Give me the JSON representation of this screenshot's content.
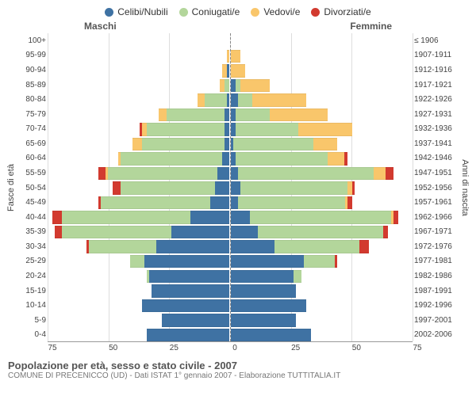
{
  "chart": {
    "type": "population-pyramid",
    "legend": [
      {
        "label": "Celibi/Nubili",
        "color": "#3f72a3"
      },
      {
        "label": "Coniugati/e",
        "color": "#b3d69b"
      },
      {
        "label": "Vedovi/e",
        "color": "#f9c66b"
      },
      {
        "label": "Divorziati/e",
        "color": "#d23a2f"
      }
    ],
    "side_left_title": "Maschi",
    "side_right_title": "Femmine",
    "y_axis_left_title": "Fasce di età",
    "y_axis_right_title": "Anni di nascita",
    "x_max": 75,
    "x_ticks": [
      75,
      50,
      25,
      0,
      25,
      50,
      75
    ],
    "background_color": "#ffffff",
    "grid_color": "#dddddd",
    "center_line_color": "#888888",
    "age_groups": [
      "100+",
      "95-99",
      "90-94",
      "85-89",
      "80-84",
      "75-79",
      "70-74",
      "65-69",
      "60-64",
      "55-59",
      "50-54",
      "45-49",
      "40-44",
      "35-39",
      "30-34",
      "25-29",
      "20-24",
      "15-19",
      "10-14",
      "5-9",
      "0-4"
    ],
    "birth_years": [
      "≤ 1906",
      "1907-1911",
      "1912-1916",
      "1917-1921",
      "1922-1926",
      "1927-1931",
      "1932-1936",
      "1937-1941",
      "1942-1946",
      "1947-1951",
      "1952-1956",
      "1957-1961",
      "1962-1966",
      "1967-1971",
      "1972-1976",
      "1977-1981",
      "1982-1986",
      "1987-1991",
      "1992-1996",
      "1997-2001",
      "2002-2006"
    ],
    "males": [
      {
        "single": 0,
        "married": 0,
        "widowed": 0,
        "divorced": 0
      },
      {
        "single": 0,
        "married": 0,
        "widowed": 1,
        "divorced": 0
      },
      {
        "single": 1,
        "married": 0,
        "widowed": 2,
        "divorced": 0
      },
      {
        "single": 0,
        "married": 2,
        "widowed": 2,
        "divorced": 0
      },
      {
        "single": 1,
        "married": 9,
        "widowed": 3,
        "divorced": 0
      },
      {
        "single": 2,
        "married": 24,
        "widowed": 3,
        "divorced": 0
      },
      {
        "single": 2,
        "married": 32,
        "widowed": 2,
        "divorced": 1
      },
      {
        "single": 2,
        "married": 34,
        "widowed": 4,
        "divorced": 0
      },
      {
        "single": 3,
        "married": 42,
        "widowed": 1,
        "divorced": 0
      },
      {
        "single": 5,
        "married": 45,
        "widowed": 1,
        "divorced": 3
      },
      {
        "single": 6,
        "married": 39,
        "widowed": 0,
        "divorced": 3
      },
      {
        "single": 8,
        "married": 45,
        "widowed": 0,
        "divorced": 1
      },
      {
        "single": 16,
        "married": 53,
        "widowed": 0,
        "divorced": 4
      },
      {
        "single": 24,
        "married": 45,
        "widowed": 0,
        "divorced": 3
      },
      {
        "single": 30,
        "married": 28,
        "widowed": 0,
        "divorced": 1
      },
      {
        "single": 35,
        "married": 6,
        "widowed": 0,
        "divorced": 0
      },
      {
        "single": 33,
        "married": 1,
        "widowed": 0,
        "divorced": 0
      },
      {
        "single": 32,
        "married": 0,
        "widowed": 0,
        "divorced": 0
      },
      {
        "single": 36,
        "married": 0,
        "widowed": 0,
        "divorced": 0
      },
      {
        "single": 28,
        "married": 0,
        "widowed": 0,
        "divorced": 0
      },
      {
        "single": 34,
        "married": 0,
        "widowed": 0,
        "divorced": 0
      }
    ],
    "females": [
      {
        "single": 0,
        "married": 0,
        "widowed": 0,
        "divorced": 0
      },
      {
        "single": 0,
        "married": 0,
        "widowed": 4,
        "divorced": 0
      },
      {
        "single": 0,
        "married": 0,
        "widowed": 6,
        "divorced": 0
      },
      {
        "single": 2,
        "married": 2,
        "widowed": 12,
        "divorced": 0
      },
      {
        "single": 3,
        "married": 6,
        "widowed": 22,
        "divorced": 0
      },
      {
        "single": 2,
        "married": 14,
        "widowed": 24,
        "divorced": 0
      },
      {
        "single": 2,
        "married": 26,
        "widowed": 22,
        "divorced": 0
      },
      {
        "single": 1,
        "married": 33,
        "widowed": 10,
        "divorced": 0
      },
      {
        "single": 2,
        "married": 38,
        "widowed": 7,
        "divorced": 1
      },
      {
        "single": 3,
        "married": 56,
        "widowed": 5,
        "divorced": 3
      },
      {
        "single": 4,
        "married": 44,
        "widowed": 2,
        "divorced": 1
      },
      {
        "single": 3,
        "married": 44,
        "widowed": 1,
        "divorced": 2
      },
      {
        "single": 8,
        "married": 58,
        "widowed": 1,
        "divorced": 2
      },
      {
        "single": 11,
        "married": 52,
        "widowed": 0,
        "divorced": 2
      },
      {
        "single": 18,
        "married": 35,
        "widowed": 0,
        "divorced": 4
      },
      {
        "single": 30,
        "married": 13,
        "widowed": 0,
        "divorced": 1
      },
      {
        "single": 26,
        "married": 3,
        "widowed": 0,
        "divorced": 0
      },
      {
        "single": 27,
        "married": 0,
        "widowed": 0,
        "divorced": 0
      },
      {
        "single": 31,
        "married": 0,
        "widowed": 0,
        "divorced": 0
      },
      {
        "single": 27,
        "married": 0,
        "widowed": 0,
        "divorced": 0
      },
      {
        "single": 33,
        "married": 0,
        "widowed": 0,
        "divorced": 0
      }
    ]
  },
  "footer": {
    "title": "Popolazione per età, sesso e stato civile - 2007",
    "subtitle": "COMUNE DI PRECENICCO (UD) - Dati ISTAT 1° gennaio 2007 - Elaborazione TUTTITALIA.IT"
  }
}
